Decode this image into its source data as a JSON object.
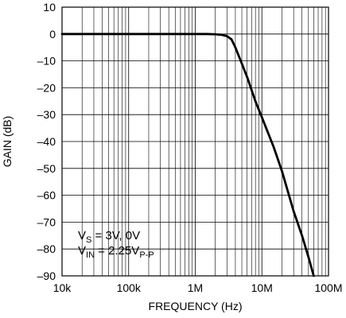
{
  "chart_data": {
    "type": "line",
    "x_scale": "log",
    "xlabel": "FREQUENCY (Hz)",
    "ylabel": "GAIN (dB)",
    "xlim": [
      10000,
      100000000
    ],
    "ylim": [
      -90,
      10
    ],
    "x_ticks": [
      {
        "value": 10000,
        "label": "10k"
      },
      {
        "value": 100000,
        "label": "100k"
      },
      {
        "value": 1000000,
        "label": "1M"
      },
      {
        "value": 10000000,
        "label": "10M"
      },
      {
        "value": 100000000,
        "label": "100M"
      }
    ],
    "y_ticks": [
      {
        "value": 10,
        "label": "10"
      },
      {
        "value": 0,
        "label": "0"
      },
      {
        "value": -10,
        "label": "–10"
      },
      {
        "value": -20,
        "label": "–20"
      },
      {
        "value": -30,
        "label": "–30"
      },
      {
        "value": -40,
        "label": "–40"
      },
      {
        "value": -50,
        "label": "–50"
      },
      {
        "value": -60,
        "label": "–60"
      },
      {
        "value": -70,
        "label": "–70"
      },
      {
        "value": -80,
        "label": "–80"
      },
      {
        "value": -90,
        "label": "–90"
      }
    ],
    "grid": true,
    "annotation": {
      "line1_main": "V",
      "line1_sub": "S",
      "line1_rest": " = 3V, 0V",
      "line2_main": "V",
      "line2_sub": "IN",
      "line2_mid": " = 2.25V",
      "line2_sub2": "P-P"
    },
    "series": [
      {
        "line_color": "#000000",
        "x": [
          10000,
          100000,
          1000000,
          1500000,
          2000000,
          2500000,
          3000000,
          3500000,
          4000000,
          5000000,
          6000000,
          8000000,
          10000000,
          15000000,
          20000000,
          30000000,
          40000000,
          50000000,
          60000000
        ],
        "y": [
          0,
          0,
          0,
          0,
          -0.1,
          -0.3,
          -0.8,
          -2,
          -5,
          -11,
          -16,
          -25,
          -31,
          -42,
          -51,
          -66,
          -75,
          -83,
          -90
        ]
      }
    ]
  }
}
